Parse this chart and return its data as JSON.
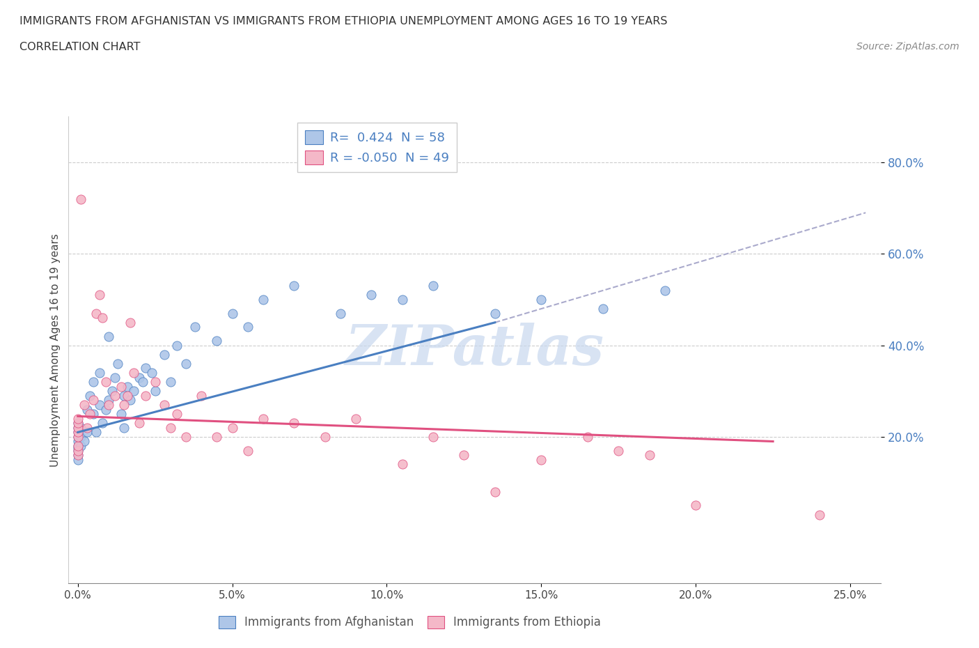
{
  "title_line1": "IMMIGRANTS FROM AFGHANISTAN VS IMMIGRANTS FROM ETHIOPIA UNEMPLOYMENT AMONG AGES 16 TO 19 YEARS",
  "title_line2": "CORRELATION CHART",
  "source_text": "Source: ZipAtlas.com",
  "ylabel": "Unemployment Among Ages 16 to 19 years",
  "xlabel_afghanistan": "Immigrants from Afghanistan",
  "xlabel_ethiopia": "Immigrants from Ethiopia",
  "R_afghanistan": 0.424,
  "N_afghanistan": 58,
  "R_ethiopia": -0.05,
  "N_ethiopia": 49,
  "afghanistan_color": "#aec6e8",
  "ethiopia_color": "#f4b8c8",
  "trend_afghanistan_color": "#4a7fc1",
  "trend_ethiopia_color": "#e05080",
  "watermark_color": "#c8d8ee",
  "watermark": "ZIPatlas",
  "xtick_vals": [
    0.0,
    5.0,
    10.0,
    15.0,
    20.0,
    25.0
  ],
  "ytick_vals": [
    20.0,
    40.0,
    60.0,
    80.0
  ],
  "xlim": [
    -0.3,
    26.0
  ],
  "ylim": [
    -12.0,
    90.0
  ],
  "afg_trend_x0": 0.0,
  "afg_trend_y0": 21.0,
  "afg_trend_x1": 13.5,
  "afg_trend_y1": 45.0,
  "afg_dash_x1": 25.5,
  "afg_dash_y1": 69.0,
  "eth_trend_x0": 0.0,
  "eth_trend_y0": 24.5,
  "eth_trend_x1": 22.5,
  "eth_trend_y1": 19.0,
  "afghanistan_x": [
    0.0,
    0.0,
    0.0,
    0.0,
    0.0,
    0.0,
    0.0,
    0.0,
    0.0,
    0.0,
    0.1,
    0.1,
    0.1,
    0.2,
    0.3,
    0.3,
    0.4,
    0.5,
    0.5,
    0.6,
    0.7,
    0.7,
    0.8,
    0.9,
    1.0,
    1.0,
    1.1,
    1.2,
    1.3,
    1.4,
    1.5,
    1.5,
    1.6,
    1.7,
    1.8,
    2.0,
    2.1,
    2.2,
    2.4,
    2.5,
    2.8,
    3.0,
    3.2,
    3.5,
    3.8,
    4.5,
    5.0,
    5.5,
    6.0,
    7.0,
    8.5,
    9.5,
    10.5,
    11.5,
    13.5,
    15.0,
    17.0,
    19.0
  ],
  "afghanistan_y": [
    16.0,
    17.0,
    17.5,
    18.0,
    19.0,
    20.0,
    21.0,
    22.0,
    23.0,
    15.0,
    18.0,
    20.0,
    22.0,
    19.0,
    21.0,
    26.0,
    29.0,
    32.0,
    25.0,
    21.0,
    34.0,
    27.0,
    23.0,
    26.0,
    28.0,
    42.0,
    30.0,
    33.0,
    36.0,
    25.0,
    22.0,
    29.0,
    31.0,
    28.0,
    30.0,
    33.0,
    32.0,
    35.0,
    34.0,
    30.0,
    38.0,
    32.0,
    40.0,
    36.0,
    44.0,
    41.0,
    47.0,
    44.0,
    50.0,
    53.0,
    47.0,
    51.0,
    50.0,
    53.0,
    47.0,
    50.0,
    48.0,
    52.0
  ],
  "ethiopia_x": [
    0.0,
    0.0,
    0.0,
    0.0,
    0.0,
    0.0,
    0.0,
    0.0,
    0.1,
    0.2,
    0.3,
    0.4,
    0.5,
    0.6,
    0.7,
    0.8,
    0.9,
    1.0,
    1.2,
    1.4,
    1.5,
    1.6,
    1.7,
    1.8,
    2.0,
    2.2,
    2.5,
    2.8,
    3.0,
    3.2,
    3.5,
    4.0,
    4.5,
    5.0,
    5.5,
    6.0,
    7.0,
    8.0,
    9.0,
    10.5,
    11.5,
    12.5,
    13.5,
    15.0,
    16.5,
    17.5,
    18.5,
    20.0,
    24.0
  ],
  "ethiopia_y": [
    16.0,
    17.0,
    18.0,
    20.0,
    21.0,
    22.0,
    23.0,
    24.0,
    72.0,
    27.0,
    22.0,
    25.0,
    28.0,
    47.0,
    51.0,
    46.0,
    32.0,
    27.0,
    29.0,
    31.0,
    27.0,
    29.0,
    45.0,
    34.0,
    23.0,
    29.0,
    32.0,
    27.0,
    22.0,
    25.0,
    20.0,
    29.0,
    20.0,
    22.0,
    17.0,
    24.0,
    23.0,
    20.0,
    24.0,
    14.0,
    20.0,
    16.0,
    8.0,
    15.0,
    20.0,
    17.0,
    16.0,
    5.0,
    3.0
  ]
}
